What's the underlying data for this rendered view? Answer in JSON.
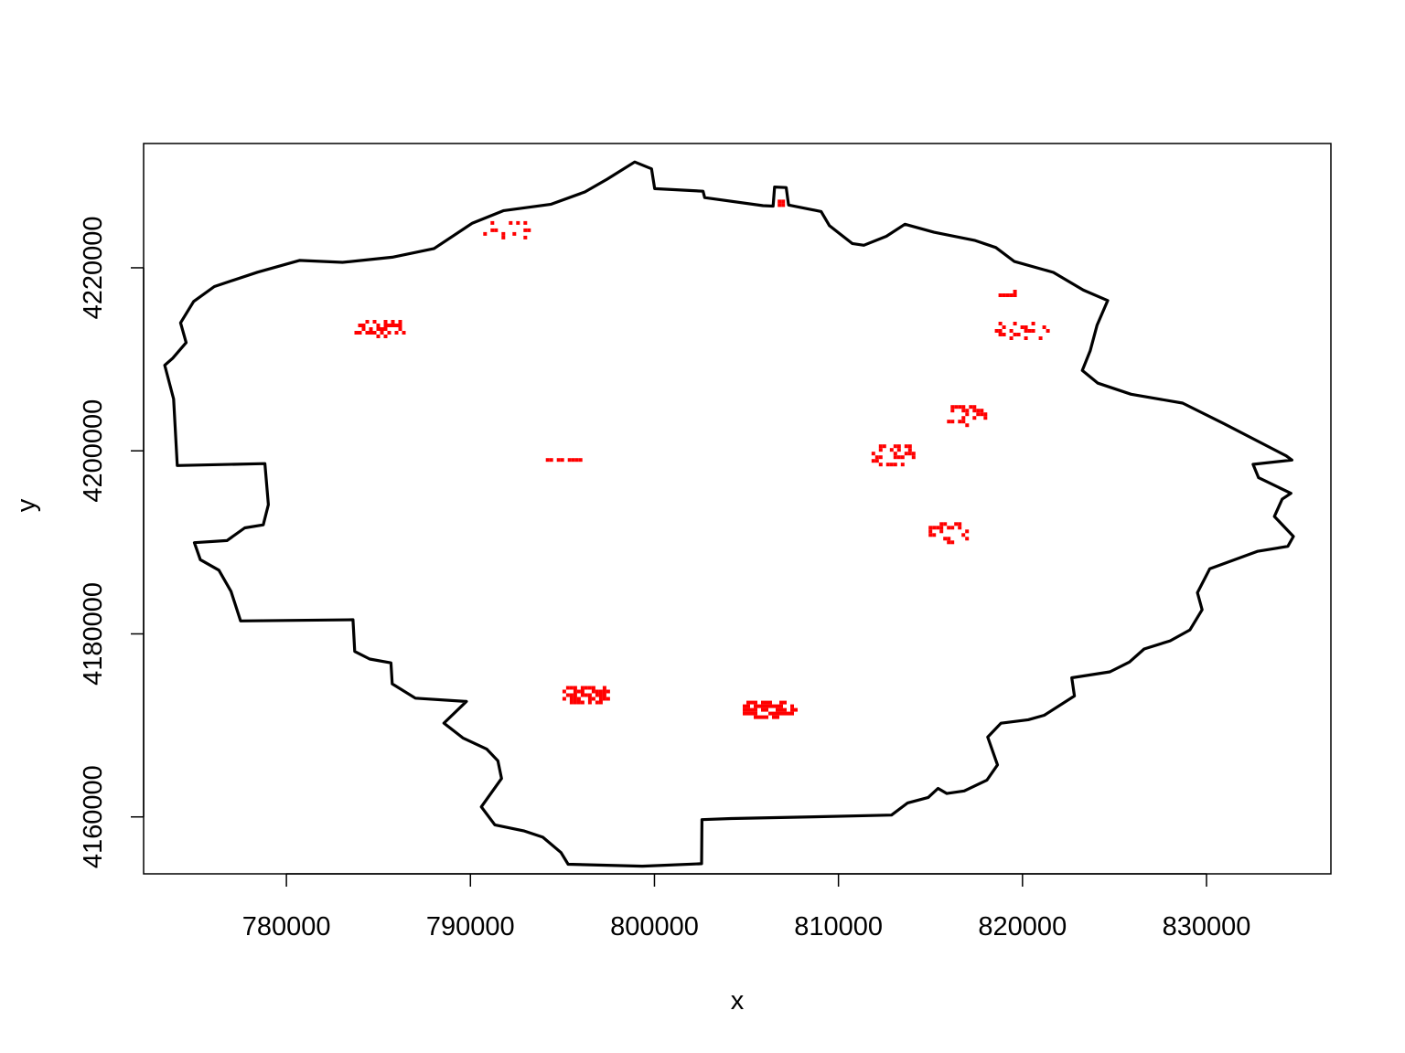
{
  "chart_data": {
    "type": "map",
    "xlabel": "x",
    "ylabel": "y",
    "x_ticks": [
      780000,
      790000,
      800000,
      810000,
      820000,
      830000
    ],
    "x_tick_labels": [
      "780000",
      "790000",
      "800000",
      "810000",
      "820000",
      "830000"
    ],
    "y_ticks": [
      4160000,
      4180000,
      4200000,
      4220000
    ],
    "y_tick_labels": [
      "4160000",
      "4180000",
      "4200000",
      "4220000"
    ],
    "xlim": [
      772240,
      836760
    ],
    "ylim": [
      4153780,
      4233580
    ],
    "colors": {
      "boundary": "#000000",
      "patches": "#ff0000",
      "frame": "#000000"
    },
    "boundary": [
      [
        773390,
        4209350
      ],
      [
        773820,
        4210120
      ],
      [
        774550,
        4211830
      ],
      [
        774250,
        4213980
      ],
      [
        774960,
        4216320
      ],
      [
        776080,
        4217950
      ],
      [
        778430,
        4219520
      ],
      [
        780710,
        4220810
      ],
      [
        783050,
        4220600
      ],
      [
        785750,
        4221160
      ],
      [
        788020,
        4222100
      ],
      [
        790110,
        4224880
      ],
      [
        791810,
        4226250
      ],
      [
        794390,
        4226950
      ],
      [
        796220,
        4228290
      ],
      [
        797430,
        4229680
      ],
      [
        798930,
        4231560
      ],
      [
        799840,
        4230810
      ],
      [
        800010,
        4228650
      ],
      [
        802640,
        4228370
      ],
      [
        802730,
        4227670
      ],
      [
        805900,
        4226790
      ],
      [
        806450,
        4226740
      ],
      [
        806530,
        4228830
      ],
      [
        807160,
        4228770
      ],
      [
        807290,
        4226860
      ],
      [
        809060,
        4226150
      ],
      [
        809510,
        4224600
      ],
      [
        810750,
        4222650
      ],
      [
        811380,
        4222460
      ],
      [
        812600,
        4223440
      ],
      [
        813610,
        4224760
      ],
      [
        815190,
        4223880
      ],
      [
        817390,
        4223000
      ],
      [
        818550,
        4222210
      ],
      [
        819560,
        4220690
      ],
      [
        821680,
        4219500
      ],
      [
        823310,
        4217560
      ],
      [
        824630,
        4216420
      ],
      [
        824050,
        4213710
      ],
      [
        823680,
        4210950
      ],
      [
        823250,
        4208780
      ],
      [
        824100,
        4207390
      ],
      [
        825900,
        4206180
      ],
      [
        828700,
        4205220
      ],
      [
        830930,
        4202990
      ],
      [
        834330,
        4199450
      ],
      [
        834640,
        4198990
      ],
      [
        832530,
        4198520
      ],
      [
        832830,
        4197070
      ],
      [
        834590,
        4195360
      ],
      [
        834110,
        4194720
      ],
      [
        833690,
        4192830
      ],
      [
        834720,
        4190640
      ],
      [
        834420,
        4189570
      ],
      [
        832760,
        4189020
      ],
      [
        830180,
        4187120
      ],
      [
        829510,
        4184500
      ],
      [
        829760,
        4182630
      ],
      [
        829100,
        4180440
      ],
      [
        828020,
        4179240
      ],
      [
        826610,
        4178350
      ],
      [
        825810,
        4176920
      ],
      [
        824750,
        4175850
      ],
      [
        822680,
        4175200
      ],
      [
        822820,
        4173220
      ],
      [
        821180,
        4171110
      ],
      [
        820310,
        4170620
      ],
      [
        818830,
        4170240
      ],
      [
        818110,
        4168720
      ],
      [
        818640,
        4165690
      ],
      [
        818070,
        4164030
      ],
      [
        816830,
        4162840
      ],
      [
        815890,
        4162560
      ],
      [
        815410,
        4163120
      ],
      [
        814880,
        4162130
      ],
      [
        813760,
        4161530
      ],
      [
        812880,
        4160200
      ],
      [
        808680,
        4160010
      ],
      [
        804160,
        4159820
      ],
      [
        802580,
        4159700
      ],
      [
        802560,
        4154890
      ],
      [
        799340,
        4154620
      ],
      [
        795310,
        4154830
      ],
      [
        794920,
        4156110
      ],
      [
        793930,
        4157780
      ],
      [
        792890,
        4158480
      ],
      [
        791330,
        4159130
      ],
      [
        790590,
        4161100
      ],
      [
        791690,
        4164200
      ],
      [
        791490,
        4166130
      ],
      [
        790890,
        4167400
      ],
      [
        789590,
        4168630
      ],
      [
        788560,
        4170250
      ],
      [
        789780,
        4172620
      ],
      [
        787010,
        4172980
      ],
      [
        785750,
        4174540
      ],
      [
        785680,
        4176830
      ],
      [
        784530,
        4177250
      ],
      [
        783710,
        4178080
      ],
      [
        783620,
        4181550
      ],
      [
        777510,
        4181420
      ],
      [
        776990,
        4184630
      ],
      [
        776330,
        4186960
      ],
      [
        775320,
        4188110
      ],
      [
        775000,
        4189960
      ],
      [
        776770,
        4190190
      ],
      [
        777740,
        4191580
      ],
      [
        778740,
        4191910
      ],
      [
        779020,
        4194120
      ],
      [
        778830,
        4198600
      ],
      [
        774070,
        4198390
      ],
      [
        773870,
        4205660
      ],
      [
        773390,
        4209350
      ]
    ],
    "patches": [
      {
        "cx": 791800,
        "cy": 4224300,
        "rx": 1500,
        "ry": 1200,
        "density": 0.22
      },
      {
        "cx": 785000,
        "cy": 4213600,
        "rx": 1500,
        "ry": 1100,
        "density": 0.55
      },
      {
        "cx": 794800,
        "cy": 4199200,
        "rx": 1100,
        "ry": 400,
        "density": 0.7
      },
      {
        "cx": 806750,
        "cy": 4227400,
        "rx": 250,
        "ry": 450,
        "density": 0.8
      },
      {
        "cx": 819200,
        "cy": 4217600,
        "rx": 900,
        "ry": 800,
        "density": 0.25
      },
      {
        "cx": 819800,
        "cy": 4213300,
        "rx": 1500,
        "ry": 1200,
        "density": 0.4
      },
      {
        "cx": 816800,
        "cy": 4204200,
        "rx": 1300,
        "ry": 1200,
        "density": 0.4
      },
      {
        "cx": 812800,
        "cy": 4199800,
        "rx": 1400,
        "ry": 1300,
        "density": 0.45
      },
      {
        "cx": 816200,
        "cy": 4191300,
        "rx": 1500,
        "ry": 1300,
        "density": 0.35
      },
      {
        "cx": 796200,
        "cy": 4173600,
        "rx": 1400,
        "ry": 1100,
        "density": 0.8
      },
      {
        "cx": 806100,
        "cy": 4172000,
        "rx": 1500,
        "ry": 1100,
        "density": 0.75
      }
    ]
  }
}
